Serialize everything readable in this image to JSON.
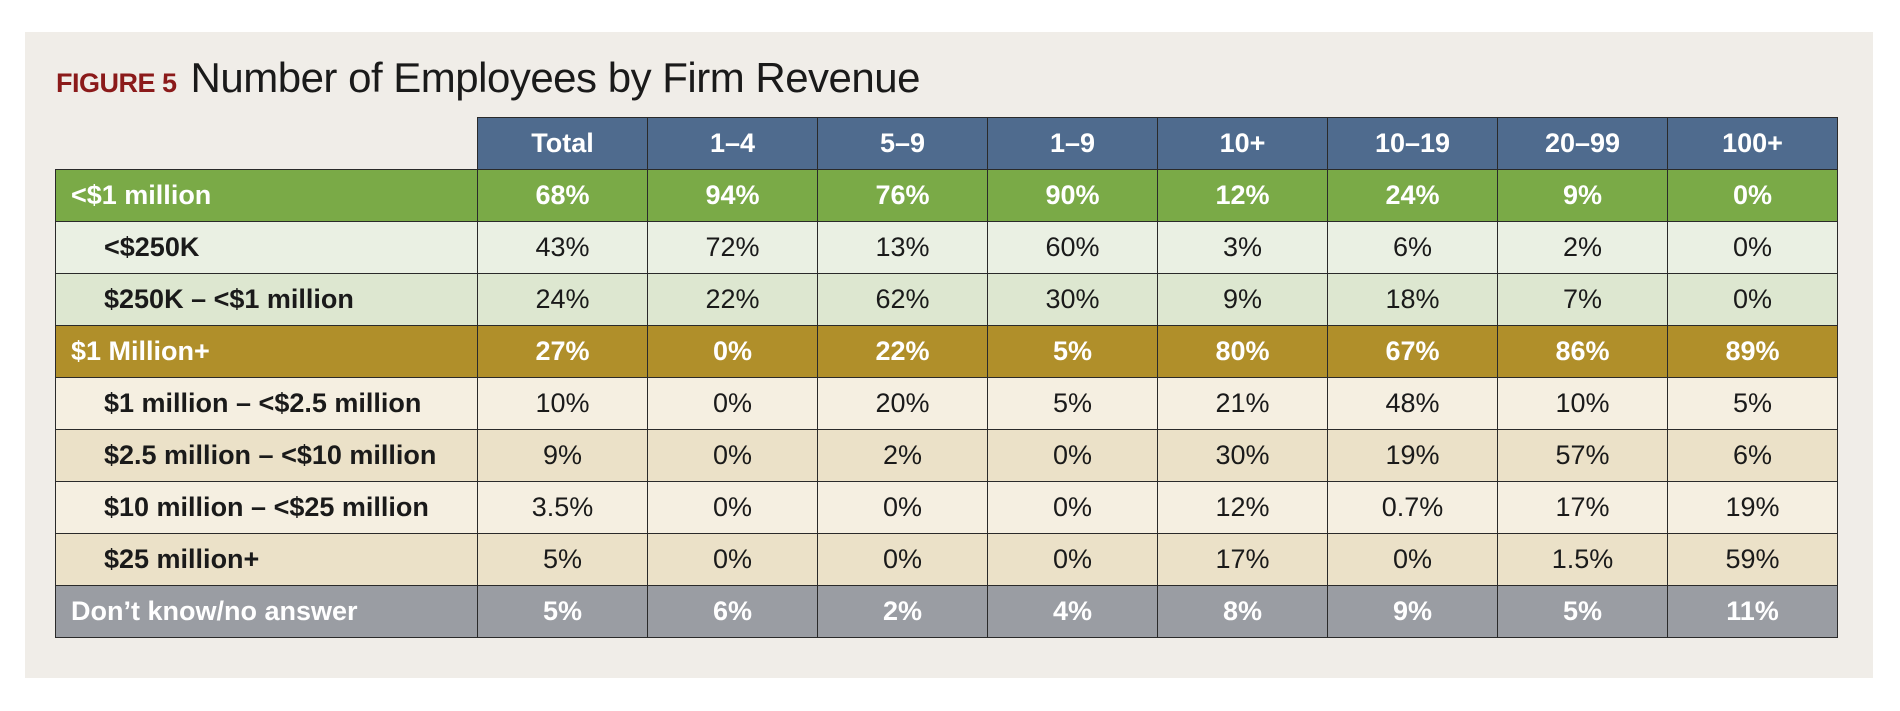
{
  "figure": {
    "label": "FIGURE 5",
    "title": "Number of Employees by Firm Revenue"
  },
  "colors": {
    "header": "#4f6b8e",
    "under_1m": "#7aaa47",
    "over_1m": "#b08f2a",
    "dont_know": "#9a9da3",
    "figure_label": "#8b1a1a"
  },
  "chart_data": {
    "type": "table",
    "title": "Number of Employees by Firm Revenue",
    "columns": [
      "Total",
      "1–4",
      "5–9",
      "1–9",
      "10+",
      "10–19",
      "20–99",
      "100+"
    ],
    "rows": [
      {
        "label": "<$1 million",
        "level": "group",
        "values": [
          "68%",
          "94%",
          "76%",
          "90%",
          "12%",
          "24%",
          "9%",
          "0%"
        ]
      },
      {
        "label": "<$250K",
        "level": "sub",
        "values": [
          "43%",
          "72%",
          "13%",
          "60%",
          "3%",
          "6%",
          "2%",
          "0%"
        ]
      },
      {
        "label": "$250K – <$1 million",
        "level": "sub",
        "values": [
          "24%",
          "22%",
          "62%",
          "30%",
          "9%",
          "18%",
          "7%",
          "0%"
        ]
      },
      {
        "label": "$1 Million+",
        "level": "group",
        "values": [
          "27%",
          "0%",
          "22%",
          "5%",
          "80%",
          "67%",
          "86%",
          "89%"
        ]
      },
      {
        "label": "$1 million – <$2.5 million",
        "level": "sub",
        "values": [
          "10%",
          "0%",
          "20%",
          "5%",
          "21%",
          "48%",
          "10%",
          "5%"
        ]
      },
      {
        "label": "$2.5 million – <$10 million",
        "level": "sub",
        "values": [
          "9%",
          "0%",
          "2%",
          "0%",
          "30%",
          "19%",
          "57%",
          "6%"
        ]
      },
      {
        "label": "$10 million – <$25 million",
        "level": "sub",
        "values": [
          "3.5%",
          "0%",
          "0%",
          "0%",
          "12%",
          "0.7%",
          "17%",
          "19%"
        ]
      },
      {
        "label": "$25 million+",
        "level": "sub",
        "values": [
          "5%",
          "0%",
          "0%",
          "0%",
          "17%",
          "0%",
          "1.5%",
          "59%"
        ]
      },
      {
        "label": "Don’t know/no answer",
        "level": "group",
        "values": [
          "5%",
          "6%",
          "2%",
          "4%",
          "8%",
          "9%",
          "5%",
          "11%"
        ]
      }
    ]
  }
}
